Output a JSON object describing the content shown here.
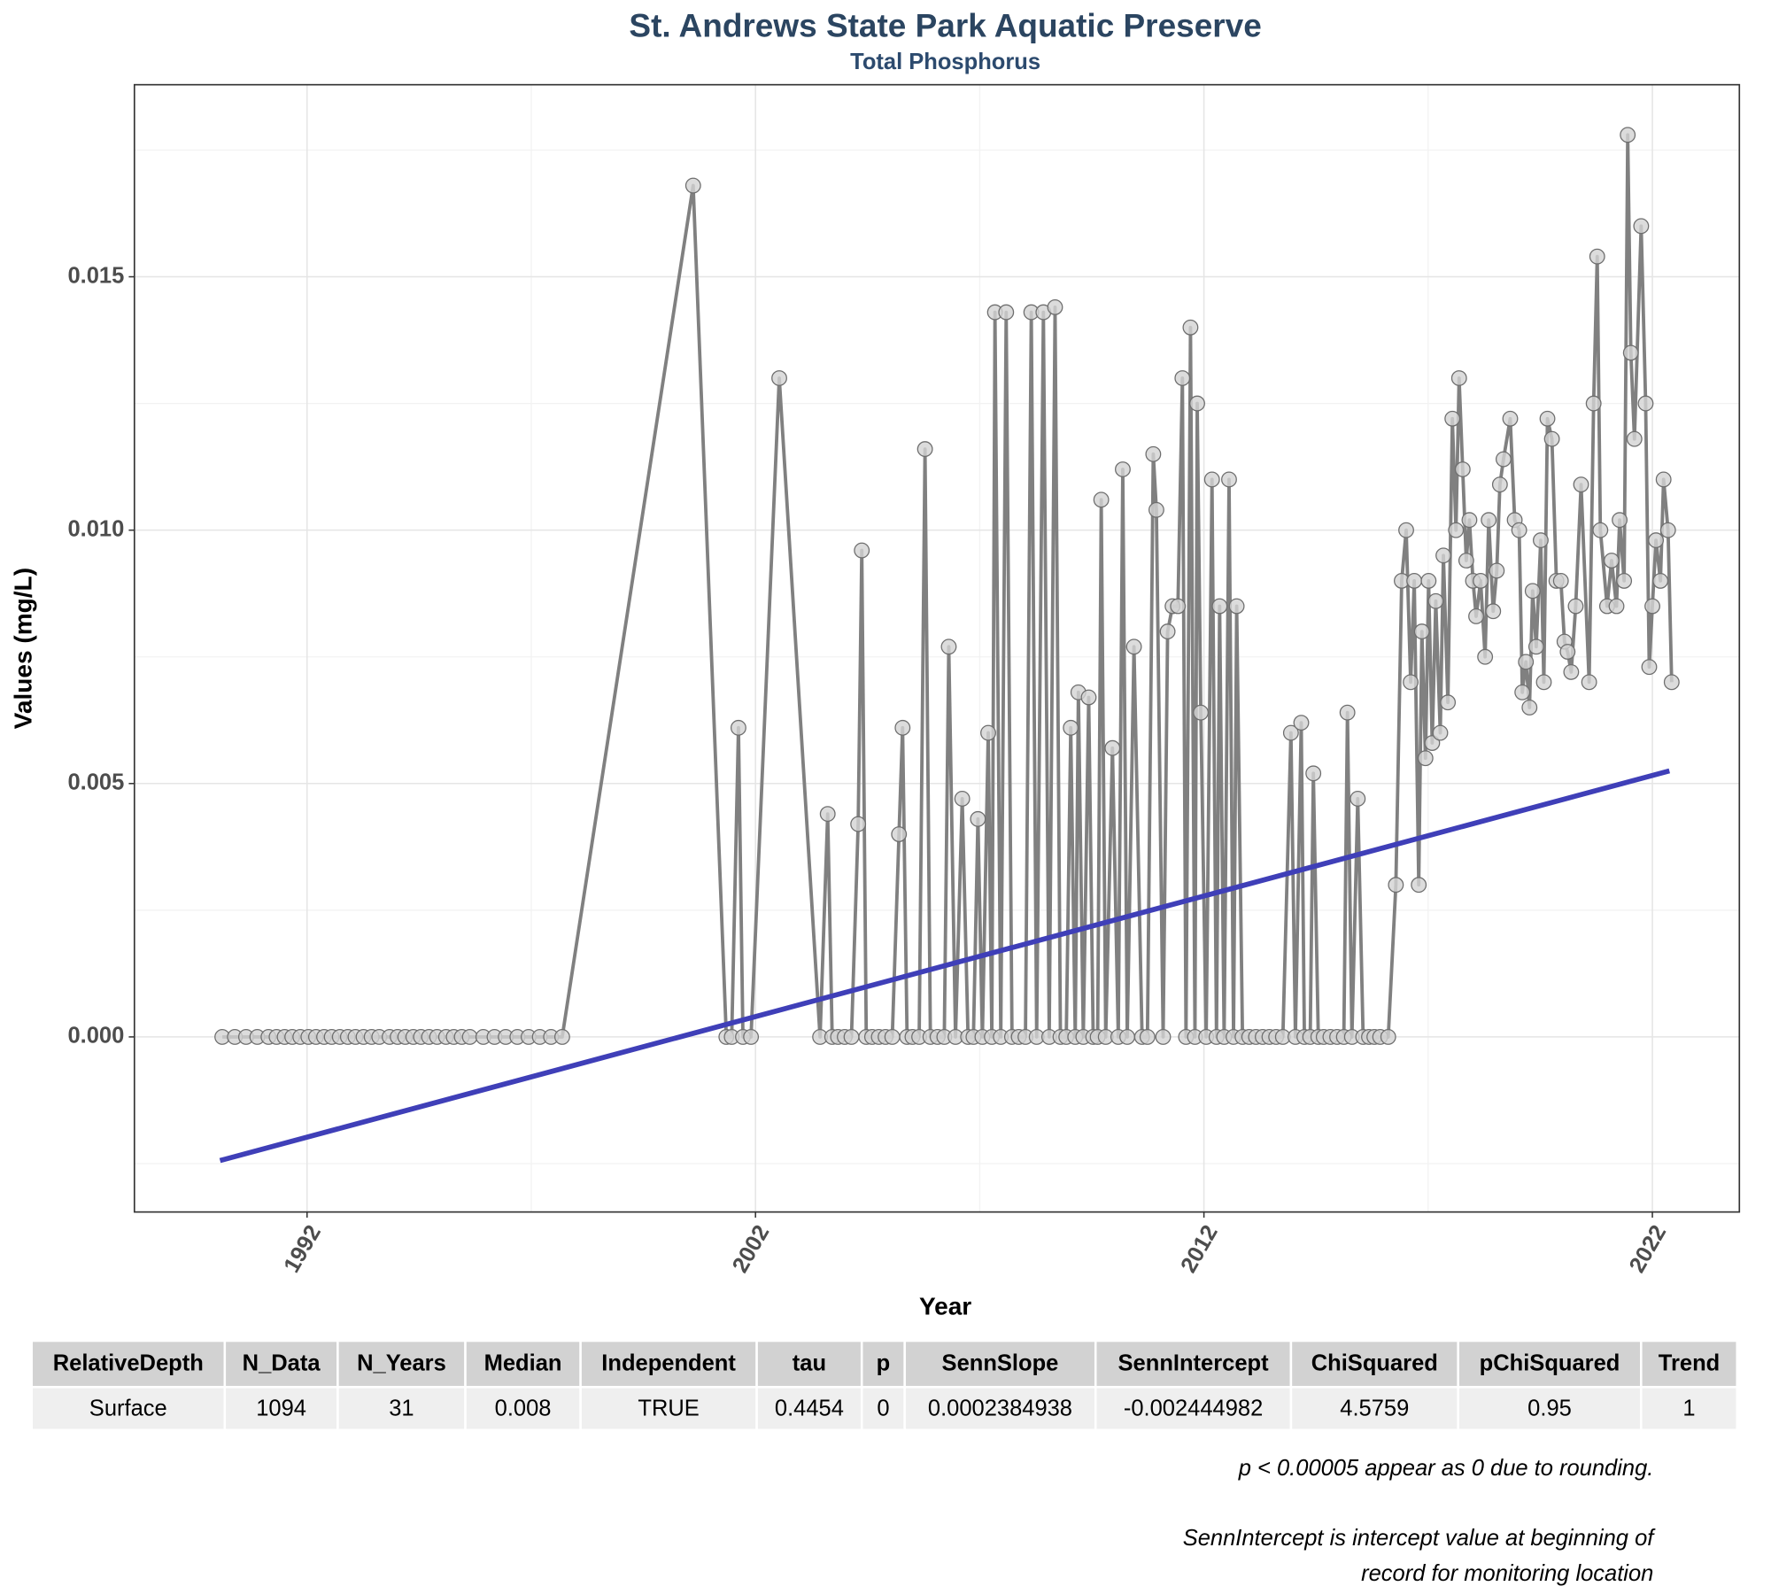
{
  "chart_data": {
    "type": "line",
    "title": "St. Andrews State Park Aquatic Preserve",
    "subtitle": "Total Phosphorus",
    "x_label": "Year",
    "y_label": "Values (mg/L)",
    "xlim": [
      1988.15,
      2023.94
    ],
    "ylim": [
      -0.003455,
      0.01879
    ],
    "xticks": [
      1992,
      2002,
      2012,
      2022
    ],
    "yticks": [
      {
        "value": 0,
        "label": "0.000"
      },
      {
        "value": 0.005,
        "label": "0.005"
      },
      {
        "value": 0.01,
        "label": "0.010"
      },
      {
        "value": 0.015,
        "label": "0.015"
      }
    ],
    "xminor": [
      1997,
      2007,
      2017
    ],
    "yminor": [
      -0.0025,
      0.0025,
      0.0075,
      0.0125,
      0.0175
    ],
    "grid": true,
    "series": [
      {
        "color": "#808080",
        "marker_color": "#d3d3d3",
        "x": [
          1990.11,
          1990.39,
          1990.64,
          1990.89,
          1991.14,
          1991.32,
          1991.5,
          1991.67,
          1991.85,
          1992.03,
          1992.2,
          1992.38,
          1992.55,
          1992.73,
          1992.91,
          1993.08,
          1993.26,
          1993.44,
          1993.61,
          1993.84,
          1994.02,
          1994.19,
          1994.37,
          1994.54,
          1994.72,
          1994.9,
          1995.1,
          1995.27,
          1995.45,
          1995.63,
          1995.93,
          1996.18,
          1996.43,
          1996.69,
          1996.94,
          1997.19,
          1997.44,
          1997.69,
          2000.61,
          2001.35,
          2001.47,
          2001.62,
          2001.72,
          2001.9,
          2002.53,
          2003.44,
          2003.61,
          2003.71,
          2003.84,
          2003.99,
          2004.14,
          2004.29,
          2004.37,
          2004.47,
          2004.6,
          2004.75,
          2004.9,
          2005.05,
          2005.2,
          2005.28,
          2005.38,
          2005.5,
          2005.65,
          2005.78,
          2005.9,
          2006.06,
          2006.21,
          2006.31,
          2006.46,
          2006.61,
          2006.74,
          2006.86,
          2006.96,
          2007.06,
          2007.19,
          2007.27,
          2007.34,
          2007.47,
          2007.59,
          2007.72,
          2007.87,
          2008.02,
          2008.15,
          2008.27,
          2008.42,
          2008.55,
          2008.68,
          2008.8,
          2008.93,
          2009.03,
          2009.13,
          2009.2,
          2009.31,
          2009.43,
          2009.53,
          2009.63,
          2009.71,
          2009.81,
          2009.96,
          2010.09,
          2010.19,
          2010.29,
          2010.44,
          2010.62,
          2010.74,
          2010.87,
          2010.94,
          2011.09,
          2011.19,
          2011.3,
          2011.42,
          2011.52,
          2011.6,
          2011.7,
          2011.8,
          2011.85,
          2011.93,
          2012.05,
          2012.18,
          2012.28,
          2012.35,
          2012.45,
          2012.56,
          2012.66,
          2012.73,
          2012.86,
          2013.01,
          2013.16,
          2013.31,
          2013.46,
          2013.61,
          2013.76,
          2013.94,
          2014.04,
          2014.17,
          2014.24,
          2014.37,
          2014.44,
          2014.55,
          2014.67,
          2014.82,
          2014.97,
          2015.12,
          2015.2,
          2015.3,
          2015.43,
          2015.55,
          2015.68,
          2015.8,
          2015.93,
          2016.11,
          2016.28,
          2016.41,
          2016.51,
          2016.61,
          2016.69,
          2016.79,
          2016.86,
          2016.94,
          2017.01,
          2017.09,
          2017.17,
          2017.27,
          2017.34,
          2017.44,
          2017.54,
          2017.62,
          2017.69,
          2017.77,
          2017.85,
          2017.92,
          2018,
          2018.07,
          2018.17,
          2018.27,
          2018.35,
          2018.45,
          2018.53,
          2018.6,
          2018.68,
          2018.83,
          2018.93,
          2019.03,
          2019.1,
          2019.18,
          2019.26,
          2019.33,
          2019.41,
          2019.51,
          2019.58,
          2019.66,
          2019.76,
          2019.86,
          2019.96,
          2020.04,
          2020.11,
          2020.19,
          2020.29,
          2020.41,
          2020.59,
          2020.69,
          2020.77,
          2020.84,
          2020.99,
          2021.09,
          2021.2,
          2021.27,
          2021.37,
          2021.45,
          2021.52,
          2021.6,
          2021.75,
          2021.85,
          2021.93,
          2022,
          2022.08,
          2022.18,
          2022.25,
          2022.35,
          2022.43
        ],
        "values": [
          0,
          0,
          0,
          0,
          0,
          0,
          0,
          0,
          0,
          0,
          0,
          0,
          0,
          0,
          0,
          0,
          0,
          0,
          0,
          0,
          0,
          0,
          0,
          0,
          0,
          0,
          0,
          0,
          0,
          0,
          0,
          0,
          0,
          0,
          0,
          0,
          0,
          0,
          0.0168,
          0,
          0,
          0.0061,
          0,
          0,
          0.013,
          0,
          0.0044,
          0,
          0,
          0,
          0,
          0.0042,
          0.0096,
          0,
          0,
          0,
          0,
          0,
          0.004,
          0.0061,
          0,
          0,
          0,
          0.0116,
          0,
          0,
          0,
          0.0077,
          0,
          0.0047,
          0,
          0,
          0.0043,
          0,
          0.006,
          0,
          0.0143,
          0,
          0.0143,
          0,
          0,
          0,
          0.0143,
          0,
          0.0143,
          0,
          0.0144,
          0,
          0,
          0.0061,
          0,
          0.0068,
          0,
          0.0067,
          0,
          0,
          0.0106,
          0,
          0.0057,
          0,
          0.0112,
          0,
          0.0077,
          0,
          0,
          0.0115,
          0.0104,
          0,
          0.008,
          0.0085,
          0.0085,
          0.013,
          0,
          0.014,
          0,
          0.0125,
          0.0064,
          0,
          0.011,
          0,
          0.0085,
          0,
          0.011,
          0,
          0.0085,
          0,
          0,
          0,
          0,
          0,
          0,
          0,
          0.006,
          0,
          0.0062,
          0,
          0,
          0.0052,
          0,
          0,
          0,
          0,
          0,
          0.0064,
          0,
          0.0047,
          0,
          0,
          0,
          0,
          0,
          0.003,
          0.009,
          0.01,
          0.007,
          0.009,
          0.003,
          0.008,
          0.0055,
          0.009,
          0.0058,
          0.0086,
          0.006,
          0.0095,
          0.0066,
          0.0122,
          0.01,
          0.013,
          0.0112,
          0.0094,
          0.0102,
          0.009,
          0.0083,
          0.009,
          0.0075,
          0.0102,
          0.0084,
          0.0092,
          0.0109,
          0.0114,
          0.0122,
          0.0102,
          0.01,
          0.0068,
          0.0074,
          0.0065,
          0.0088,
          0.0077,
          0.0098,
          0.007,
          0.0122,
          0.0118,
          0.009,
          0.009,
          0.0078,
          0.0076,
          0.0072,
          0.0085,
          0.0109,
          0.007,
          0.0125,
          0.0154,
          0.01,
          0.0085,
          0.0094,
          0.0085,
          0.0102,
          0.009,
          0.0178,
          0.0135,
          0.0118,
          0.016,
          0.0125,
          0.0073,
          0.0085,
          0.0098,
          0.009,
          0.011,
          0.01,
          0.007
        ]
      }
    ],
    "trend": {
      "color": "#3f3fb8",
      "x": [
        1990.06,
        2022.38
      ],
      "values": [
        -0.00244,
        0.00525
      ]
    }
  },
  "table": {
    "header": [
      "RelativeDepth",
      "N_Data",
      "N_Years",
      "Median",
      "Independent",
      "tau",
      "p",
      "SennSlope",
      "SennIntercept",
      "ChiSquared",
      "pChiSquared",
      "Trend"
    ],
    "rows": [
      [
        "Surface",
        "1094",
        "31",
        "0.008",
        "TRUE",
        "0.4454",
        "0",
        "0.0002384938",
        "-0.002444982",
        "4.5759",
        "0.95",
        "1"
      ]
    ]
  },
  "notes": [
    "p < 0.00005 appear as 0 due to rounding.",
    "SennIntercept is intercept value at beginning of",
    "record for monitoring location"
  ]
}
